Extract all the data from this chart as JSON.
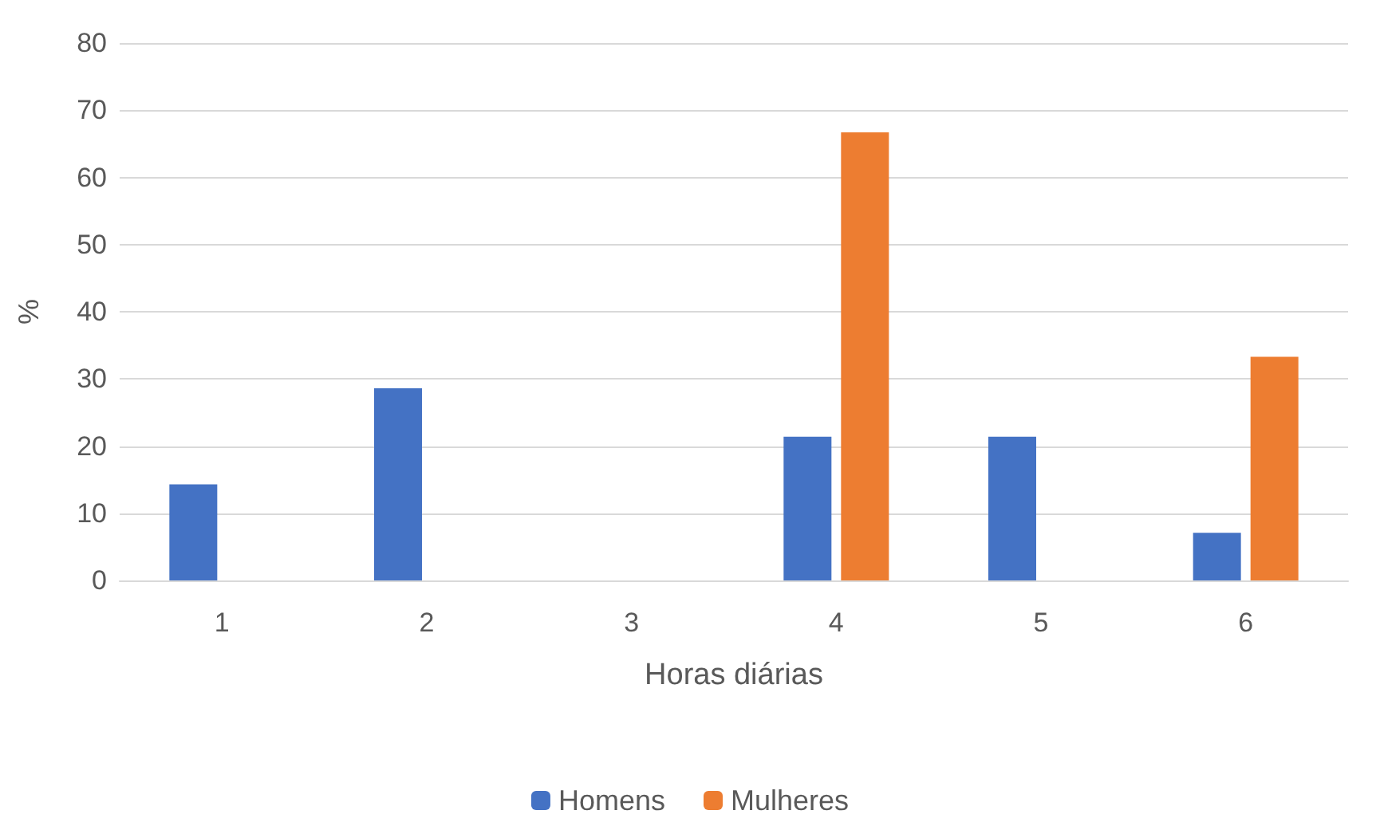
{
  "chart_data": {
    "type": "bar",
    "xlabel": "Horas diárias",
    "ylabel": "%",
    "categories": [
      "1",
      "2",
      "3",
      "4",
      "5",
      "6"
    ],
    "series": [
      {
        "name": "Homens",
        "color": "#4472c4",
        "values": [
          14.3,
          28.6,
          0,
          21.4,
          21.4,
          7.1
        ]
      },
      {
        "name": "Mulheres",
        "color": "#ed7d31",
        "values": [
          0,
          0,
          0,
          66.7,
          0,
          33.3
        ]
      }
    ],
    "ylim": [
      0,
      80
    ],
    "yticks": [
      0,
      10,
      20,
      30,
      40,
      50,
      60,
      70,
      80
    ],
    "grid": "y",
    "legend": "bottom"
  }
}
